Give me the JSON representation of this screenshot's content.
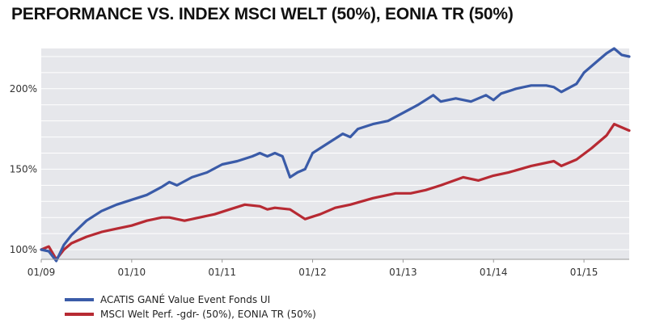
{
  "title": "PERFORMANCE VS. INDEX MSCI WELT (50%), EONIA TR (50%)",
  "chart_data": {
    "type": "line",
    "title": "PERFORMANCE VS. INDEX MSCI WELT (50%), EONIA TR (50%)",
    "x_tick_labels": [
      "01/09",
      "01/10",
      "01/11",
      "01/12",
      "01/13",
      "01/14",
      "01/15"
    ],
    "y_tick_labels": [
      "100%",
      "150%",
      "200%"
    ],
    "y_ticks": [
      100,
      150,
      200
    ],
    "ylim": [
      94,
      225
    ],
    "xlim": [
      "2009-01",
      "2015-07"
    ],
    "grid": true,
    "legend_position": "bottom-left",
    "series": [
      {
        "name": "ACATIS GANÉ Value Event Fonds UI",
        "color": "#3a5ba8",
        "x": [
          "2009-01",
          "2009-02",
          "2009-03",
          "2009-04",
          "2009-05",
          "2009-07",
          "2009-09",
          "2009-11",
          "2010-01",
          "2010-03",
          "2010-05",
          "2010-06",
          "2010-07",
          "2010-09",
          "2010-11",
          "2011-01",
          "2011-03",
          "2011-05",
          "2011-06",
          "2011-07",
          "2011-08",
          "2011-09",
          "2011-10",
          "2011-11",
          "2011-12",
          "2012-01",
          "2012-03",
          "2012-05",
          "2012-06",
          "2012-07",
          "2012-09",
          "2012-11",
          "2013-01",
          "2013-03",
          "2013-05",
          "2013-06",
          "2013-08",
          "2013-10",
          "2013-12",
          "2014-01",
          "2014-02",
          "2014-04",
          "2014-06",
          "2014-08",
          "2014-09",
          "2014-10",
          "2014-12",
          "2015-01",
          "2015-03",
          "2015-04",
          "2015-05",
          "2015-06",
          "2015-07"
        ],
        "values": [
          100,
          99,
          93,
          103,
          109,
          118,
          124,
          128,
          131,
          134,
          139,
          142,
          140,
          145,
          148,
          153,
          155,
          158,
          160,
          158,
          160,
          158,
          145,
          148,
          150,
          160,
          166,
          172,
          170,
          175,
          178,
          180,
          185,
          190,
          196,
          192,
          194,
          192,
          196,
          193,
          197,
          200,
          202,
          202,
          201,
          198,
          203,
          210,
          218,
          222,
          225,
          221,
          220
        ]
      },
      {
        "name": "MSCI Welt Perf. -gdr-  (50%), EONIA TR (50%)",
        "color": "#b72a33",
        "x": [
          "2009-01",
          "2009-02",
          "2009-03",
          "2009-04",
          "2009-05",
          "2009-07",
          "2009-09",
          "2009-11",
          "2010-01",
          "2010-03",
          "2010-05",
          "2010-06",
          "2010-08",
          "2010-10",
          "2010-12",
          "2011-02",
          "2011-04",
          "2011-06",
          "2011-07",
          "2011-08",
          "2011-10",
          "2011-12",
          "2012-02",
          "2012-04",
          "2012-06",
          "2012-09",
          "2012-12",
          "2013-02",
          "2013-04",
          "2013-06",
          "2013-09",
          "2013-11",
          "2014-01",
          "2014-03",
          "2014-06",
          "2014-09",
          "2014-10",
          "2014-12",
          "2015-02",
          "2015-04",
          "2015-05",
          "2015-06",
          "2015-07"
        ],
        "values": [
          100,
          102,
          94,
          100,
          104,
          108,
          111,
          113,
          115,
          118,
          120,
          120,
          118,
          120,
          122,
          125,
          128,
          127,
          125,
          126,
          125,
          119,
          122,
          126,
          128,
          132,
          135,
          135,
          137,
          140,
          145,
          143,
          146,
          148,
          152,
          155,
          152,
          156,
          163,
          171,
          178,
          176,
          174
        ]
      }
    ]
  }
}
